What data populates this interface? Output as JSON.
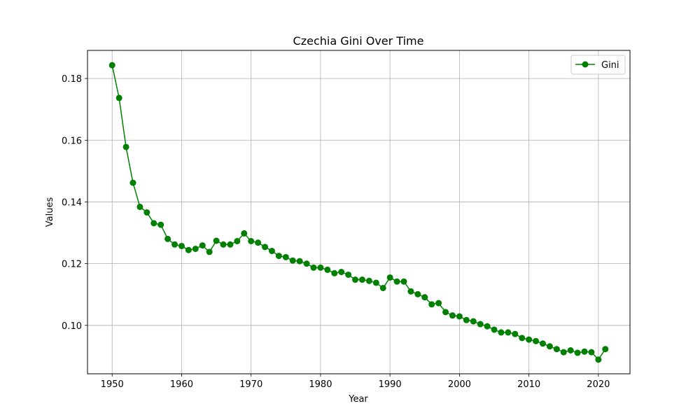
{
  "chart_data": {
    "type": "line",
    "title": "Czechia Gini Over Time",
    "xlabel": "Year",
    "ylabel": "Values",
    "xlim": [
      1946.45,
      2024.55
    ],
    "ylim": [
      0.0843,
      0.1891
    ],
    "xticks": [
      1950,
      1960,
      1970,
      1980,
      1990,
      2000,
      2010,
      2020
    ],
    "yticks": [
      0.1,
      0.12,
      0.14,
      0.16,
      0.18
    ],
    "grid": true,
    "legend_position": "top-right",
    "series": [
      {
        "name": "Gini",
        "color": "#008000",
        "marker": "circle",
        "x": [
          1950,
          1951,
          1952,
          1953,
          1954,
          1955,
          1956,
          1957,
          1958,
          1959,
          1960,
          1961,
          1962,
          1963,
          1964,
          1965,
          1966,
          1967,
          1968,
          1969,
          1970,
          1971,
          1972,
          1973,
          1974,
          1975,
          1976,
          1977,
          1978,
          1979,
          1980,
          1981,
          1982,
          1983,
          1984,
          1985,
          1986,
          1987,
          1988,
          1989,
          1990,
          1991,
          1992,
          1993,
          1994,
          1995,
          1996,
          1997,
          1998,
          1999,
          2000,
          2001,
          2002,
          2003,
          2004,
          2005,
          2006,
          2007,
          2008,
          2009,
          2010,
          2011,
          2012,
          2013,
          2014,
          2015,
          2016,
          2017,
          2018,
          2019,
          2020,
          2021
        ],
        "values": [
          0.1843,
          0.1737,
          0.1578,
          0.1462,
          0.1384,
          0.1366,
          0.1331,
          0.1326,
          0.128,
          0.1262,
          0.1257,
          0.1244,
          0.1248,
          0.1259,
          0.1238,
          0.1274,
          0.1262,
          0.1262,
          0.1273,
          0.1298,
          0.1273,
          0.1268,
          0.1254,
          0.1241,
          0.1225,
          0.1221,
          0.121,
          0.1208,
          0.12,
          0.1187,
          0.1187,
          0.118,
          0.1169,
          0.1173,
          0.1164,
          0.1148,
          0.1148,
          0.1144,
          0.1138,
          0.1121,
          0.1155,
          0.1142,
          0.1142,
          0.111,
          0.1101,
          0.1091,
          0.1068,
          0.1072,
          0.1043,
          0.1032,
          0.1029,
          0.1017,
          0.1013,
          0.1004,
          0.0997,
          0.0986,
          0.0977,
          0.0977,
          0.0972,
          0.0959,
          0.0954,
          0.0949,
          0.0941,
          0.0932,
          0.0923,
          0.0913,
          0.0919,
          0.0911,
          0.0915,
          0.0913,
          0.0889,
          0.0923
        ]
      }
    ]
  }
}
